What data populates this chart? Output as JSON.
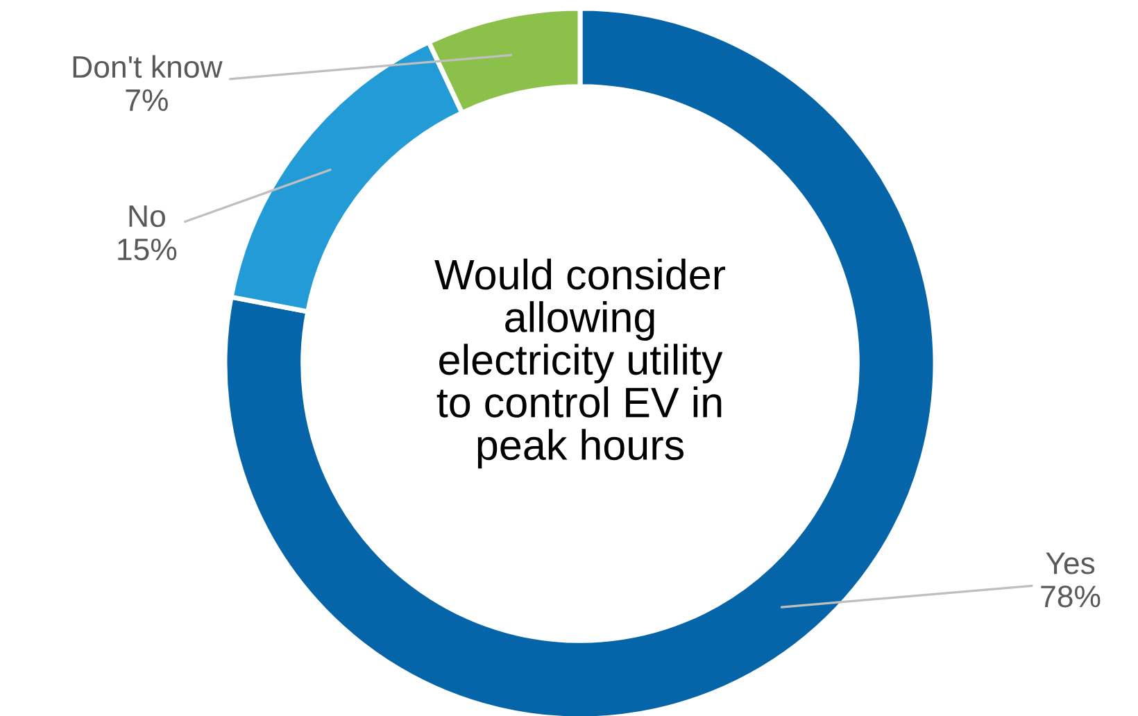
{
  "chart_data": {
    "type": "donut",
    "title": "Would consider\nallowing\nelectricity utility\nto control EV in\npeak hours",
    "categories": [
      "Yes",
      "No",
      "Don't know"
    ],
    "values": [
      78,
      15,
      7
    ],
    "colors": [
      "#0565a8",
      "#229bd6",
      "#8bc04a"
    ],
    "value_labels": [
      "78%",
      "15%",
      "7%"
    ],
    "legend": false
  }
}
